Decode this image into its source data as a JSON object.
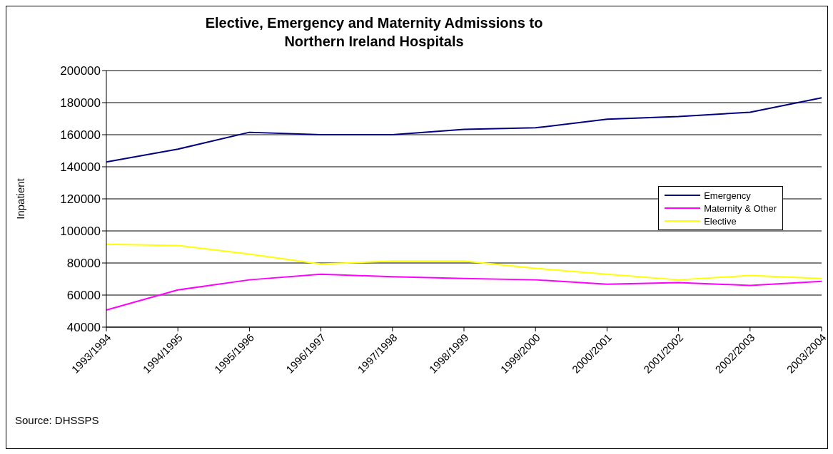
{
  "chart_data": {
    "type": "line",
    "title": "Elective, Emergency and Maternity Admissions to Northern Ireland Hospitals",
    "ylabel": "Inpatient",
    "categories": [
      "1993/1994",
      "1994/1995",
      "1995/1996",
      "1996/1997",
      "1997/1998",
      "1998/1999",
      "1999/2000",
      "2000/2001",
      "2001/2002",
      "2002/2003",
      "2003/2004"
    ],
    "series": [
      {
        "name": "Emergency",
        "color": "#000080",
        "values": [
          143000,
          151000,
          161500,
          160000,
          160000,
          163300,
          164300,
          169700,
          171300,
          174000,
          183000
        ]
      },
      {
        "name": "Maternity & Other",
        "color": "#ff00ff",
        "values": [
          50700,
          63200,
          69500,
          73000,
          71400,
          70300,
          69500,
          66800,
          67800,
          66000,
          68600
        ]
      },
      {
        "name": "Elective",
        "color": "#ffff00",
        "values": [
          91700,
          90900,
          85600,
          79300,
          81200,
          81200,
          76700,
          73000,
          69500,
          72200,
          70300
        ]
      }
    ],
    "ylim": [
      40000,
      200000
    ],
    "yticks": [
      40000,
      60000,
      80000,
      100000,
      120000,
      140000,
      160000,
      180000,
      200000
    ],
    "grid": "y",
    "legend": "right",
    "marker": "none",
    "line_style": "solid",
    "annotations": [
      "Source: DHSSPS"
    ]
  }
}
